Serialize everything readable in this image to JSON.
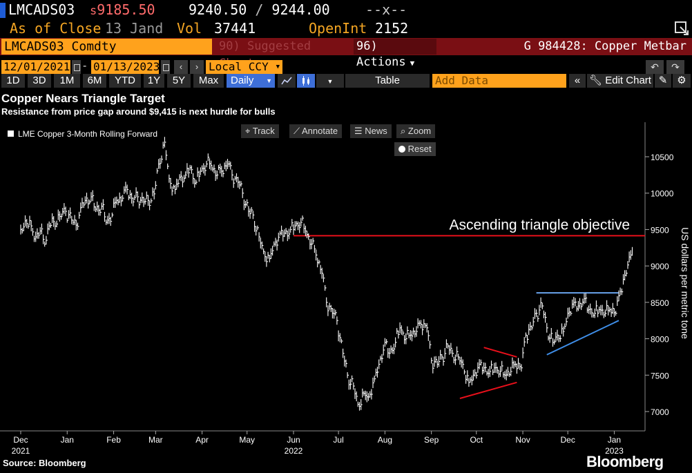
{
  "header": {
    "ticker": "LMCADS03",
    "last_prefix": "s",
    "last": "9185.50",
    "bid": "9240.50",
    "ask": "9244.00",
    "change": "--x--",
    "as_of_label": "As of Close",
    "as_of_date": "13 Jand",
    "vol_label": "Vol",
    "vol": "37441",
    "oi_label": "OpenInt",
    "oi": "2152"
  },
  "function_bar": {
    "security": "LMCADS03 Comdty",
    "suggested": "Suggested Charts",
    "actions": "Actions",
    "security_title": "G 984428: Copper Metbar"
  },
  "date_range": {
    "start": "12/01/2021",
    "end": "01/13/2023",
    "currency": "Local CCY"
  },
  "toolbar": {
    "periods": [
      "1D",
      "3D",
      "1M",
      "6M",
      "YTD",
      "1Y",
      "5Y",
      "Max"
    ],
    "frequency": "Daily",
    "table": "Table",
    "add_data": "Add Data",
    "edit_chart": "Edit Chart"
  },
  "chart_tools": {
    "track": "Track",
    "annotate": "Annotate",
    "news": "News",
    "zoom": "Zoom",
    "reset": "Reset"
  },
  "footer": {
    "source": "Source: Bloomberg",
    "brand": "Bloomberg"
  },
  "colors": {
    "background": "#000000",
    "accent": "#ffa21c",
    "price_line": "#ffffff",
    "target_line": "#e8101b",
    "triangle_support": "#3f8ee8",
    "triangle_resistance": "#6aa4ee",
    "pennant": "#e8101b"
  },
  "chart_data": {
    "type": "line",
    "title": "Copper Nears Triangle Target",
    "subtitle": "Resistance from price gap around $9,415 is next hurdle for bulls",
    "legend": "LME Copper 3-Month Rolling Forward",
    "legend_position": "top-left",
    "ylabel": "US dollars per metric tone",
    "ylim": [
      6800,
      10950
    ],
    "yticks": [
      7000,
      7500,
      8000,
      8500,
      9000,
      9500,
      10000,
      10500
    ],
    "grid": false,
    "x_ticks": [
      {
        "date": "2021-12-01",
        "label": "Dec",
        "sub": "2021"
      },
      {
        "date": "2022-01-01",
        "label": "Jan",
        "sub": ""
      },
      {
        "date": "2022-02-01",
        "label": "Feb",
        "sub": ""
      },
      {
        "date": "2022-03-01",
        "label": "Mar",
        "sub": ""
      },
      {
        "date": "2022-04-01",
        "label": "Apr",
        "sub": ""
      },
      {
        "date": "2022-05-01",
        "label": "May",
        "sub": ""
      },
      {
        "date": "2022-06-01",
        "label": "Jun",
        "sub": "2022"
      },
      {
        "date": "2022-07-01",
        "label": "Jul",
        "sub": ""
      },
      {
        "date": "2022-08-01",
        "label": "Aug",
        "sub": ""
      },
      {
        "date": "2022-09-01",
        "label": "Sep",
        "sub": ""
      },
      {
        "date": "2022-10-01",
        "label": "Oct",
        "sub": ""
      },
      {
        "date": "2022-11-01",
        "label": "Nov",
        "sub": ""
      },
      {
        "date": "2022-12-01",
        "label": "Dec",
        "sub": ""
      },
      {
        "date": "2023-01-01",
        "label": "Jan",
        "sub": "2023"
      }
    ],
    "x_range": [
      "2021-12-01",
      "2023-01-16"
    ],
    "series": [
      {
        "name": "LME Copper 3-Month Rolling Forward",
        "points": [
          [
            "2021-12-01",
            9500
          ],
          [
            "2021-12-04",
            9620
          ],
          [
            "2021-12-08",
            9550
          ],
          [
            "2021-12-11",
            9400
          ],
          [
            "2021-12-14",
            9480
          ],
          [
            "2021-12-17",
            9300
          ],
          [
            "2021-12-20",
            9550
          ],
          [
            "2021-12-23",
            9610
          ],
          [
            "2021-12-27",
            9680
          ],
          [
            "2021-12-31",
            9750
          ],
          [
            "2022-01-04",
            9630
          ],
          [
            "2022-01-07",
            9560
          ],
          [
            "2022-01-10",
            9800
          ],
          [
            "2022-01-13",
            9900
          ],
          [
            "2022-01-17",
            9950
          ],
          [
            "2022-01-20",
            9780
          ],
          [
            "2022-01-24",
            9820
          ],
          [
            "2022-01-27",
            9600
          ],
          [
            "2022-01-31",
            9700
          ],
          [
            "2022-02-03",
            9900
          ],
          [
            "2022-02-07",
            9930
          ],
          [
            "2022-02-10",
            10050
          ],
          [
            "2022-02-14",
            9880
          ],
          [
            "2022-02-17",
            9950
          ],
          [
            "2022-02-21",
            9880
          ],
          [
            "2022-02-24",
            9900
          ],
          [
            "2022-02-28",
            9990
          ],
          [
            "2022-03-03",
            10400
          ],
          [
            "2022-03-07",
            10700
          ],
          [
            "2022-03-10",
            10200
          ],
          [
            "2022-03-14",
            10050
          ],
          [
            "2022-03-17",
            10220
          ],
          [
            "2022-03-21",
            10250
          ],
          [
            "2022-03-24",
            10350
          ],
          [
            "2022-03-28",
            10150
          ],
          [
            "2022-03-31",
            10300
          ],
          [
            "2022-04-04",
            10400
          ],
          [
            "2022-04-07",
            10380
          ],
          [
            "2022-04-11",
            10250
          ],
          [
            "2022-04-14",
            10300
          ],
          [
            "2022-04-18",
            10400
          ],
          [
            "2022-04-21",
            10250
          ],
          [
            "2022-04-25",
            10150
          ],
          [
            "2022-04-28",
            10000
          ],
          [
            "2022-05-02",
            9750
          ],
          [
            "2022-05-05",
            9700
          ],
          [
            "2022-05-09",
            9400
          ],
          [
            "2022-05-12",
            9200
          ],
          [
            "2022-05-16",
            9100
          ],
          [
            "2022-05-19",
            9300
          ],
          [
            "2022-05-23",
            9450
          ],
          [
            "2022-05-26",
            9450
          ],
          [
            "2022-05-30",
            9500
          ],
          [
            "2022-06-02",
            9550
          ],
          [
            "2022-06-06",
            9600
          ],
          [
            "2022-06-09",
            9480
          ],
          [
            "2022-06-13",
            9300
          ],
          [
            "2022-06-16",
            9150
          ],
          [
            "2022-06-20",
            8900
          ],
          [
            "2022-06-23",
            8500
          ],
          [
            "2022-06-27",
            8350
          ],
          [
            "2022-06-30",
            8250
          ],
          [
            "2022-07-04",
            7800
          ],
          [
            "2022-07-07",
            7500
          ],
          [
            "2022-07-11",
            7350
          ],
          [
            "2022-07-14",
            7100
          ],
          [
            "2022-07-18",
            7250
          ],
          [
            "2022-07-21",
            7200
          ],
          [
            "2022-07-25",
            7450
          ],
          [
            "2022-07-28",
            7650
          ],
          [
            "2022-08-01",
            7950
          ],
          [
            "2022-08-04",
            7800
          ],
          [
            "2022-08-08",
            7950
          ],
          [
            "2022-08-11",
            8150
          ],
          [
            "2022-08-15",
            8000
          ],
          [
            "2022-08-18",
            8050
          ],
          [
            "2022-08-22",
            8100
          ],
          [
            "2022-08-25",
            8200
          ],
          [
            "2022-08-29",
            8150
          ],
          [
            "2022-09-01",
            7700
          ],
          [
            "2022-09-05",
            7650
          ],
          [
            "2022-09-08",
            7750
          ],
          [
            "2022-09-12",
            7900
          ],
          [
            "2022-09-15",
            7800
          ],
          [
            "2022-09-19",
            7750
          ],
          [
            "2022-09-22",
            7650
          ],
          [
            "2022-09-26",
            7400
          ],
          [
            "2022-09-29",
            7500
          ],
          [
            "2022-10-03",
            7650
          ],
          [
            "2022-10-06",
            7600
          ],
          [
            "2022-10-10",
            7550
          ],
          [
            "2022-10-13",
            7600
          ],
          [
            "2022-10-17",
            7550
          ],
          [
            "2022-10-20",
            7500
          ],
          [
            "2022-10-24",
            7550
          ],
          [
            "2022-10-27",
            7650
          ],
          [
            "2022-10-31",
            7600
          ],
          [
            "2022-11-03",
            8050
          ],
          [
            "2022-11-07",
            8150
          ],
          [
            "2022-11-10",
            8350
          ],
          [
            "2022-11-14",
            8450
          ],
          [
            "2022-11-17",
            8150
          ],
          [
            "2022-11-21",
            7950
          ],
          [
            "2022-11-24",
            8050
          ],
          [
            "2022-11-28",
            8100
          ],
          [
            "2022-12-01",
            8350
          ],
          [
            "2022-12-05",
            8500
          ],
          [
            "2022-12-08",
            8450
          ],
          [
            "2022-12-12",
            8550
          ],
          [
            "2022-12-15",
            8400
          ],
          [
            "2022-12-19",
            8350
          ],
          [
            "2022-12-22",
            8400
          ],
          [
            "2022-12-26",
            8350
          ],
          [
            "2022-12-29",
            8400
          ],
          [
            "2023-01-02",
            8350
          ],
          [
            "2023-01-05",
            8650
          ],
          [
            "2023-01-09",
            8900
          ],
          [
            "2023-01-12",
            9150
          ],
          [
            "2023-01-13",
            9200
          ]
        ]
      }
    ],
    "annotations": [
      {
        "type": "hline",
        "label": "Ascending triangle objective",
        "y": 9415,
        "x_from": "2022-06-01",
        "x_to": "2023-01-16",
        "color": "#e8101b"
      },
      {
        "type": "segment",
        "role": "resistance",
        "from": [
          "2022-11-10",
          8630
        ],
        "to": [
          "2023-01-04",
          8630
        ],
        "color": "#6aa4ee"
      },
      {
        "type": "segment",
        "role": "support",
        "from": [
          "2022-11-17",
          7780
        ],
        "to": [
          "2023-01-04",
          8250
        ],
        "color": "#3f8ee8"
      },
      {
        "type": "segment",
        "role": "pennant-upper",
        "from": [
          "2022-10-06",
          7880
        ],
        "to": [
          "2022-10-28",
          7750
        ],
        "color": "#e8101b"
      },
      {
        "type": "segment",
        "role": "pennant-lower",
        "from": [
          "2022-09-20",
          7180
        ],
        "to": [
          "2022-10-28",
          7400
        ],
        "color": "#e8101b"
      }
    ]
  }
}
